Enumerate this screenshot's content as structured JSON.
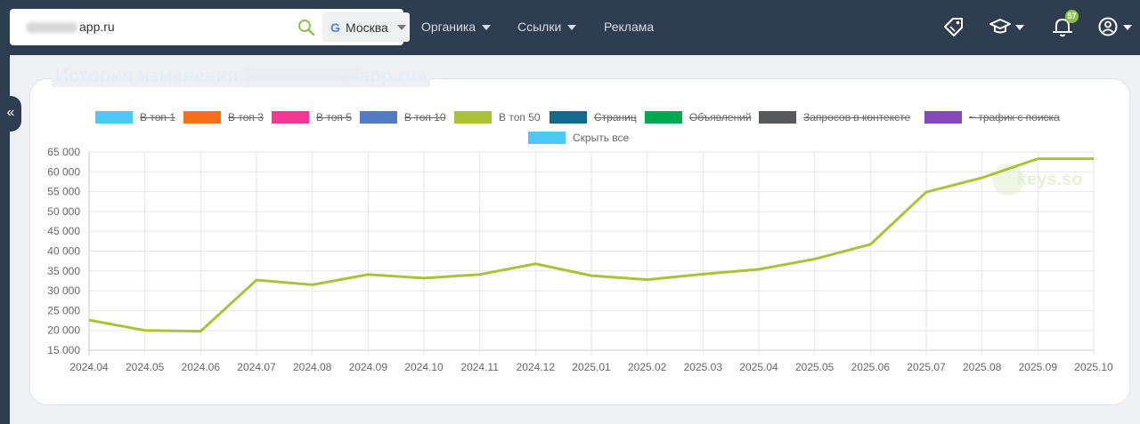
{
  "search": {
    "domain_suffix": "app.ru"
  },
  "region": {
    "label": "Москва",
    "engine_icon": "google-g-icon"
  },
  "nav": [
    {
      "label": "Органика",
      "has_dropdown": true
    },
    {
      "label": "Ссылки",
      "has_dropdown": true
    },
    {
      "label": "Реклама",
      "has_dropdown": false
    }
  ],
  "toolbar": {
    "notifications_count": "57"
  },
  "sidebar": {
    "collapse_glyph": "«"
  },
  "panel": {
    "title_prefix": "История изменения",
    "title_suffix": "app.ru»"
  },
  "legend": {
    "items": [
      {
        "label": "В топ 1",
        "color": "#4dc9f6",
        "hidden": true
      },
      {
        "label": "В топ 3",
        "color": "#f67019",
        "hidden": true
      },
      {
        "label": "В топ 5",
        "color": "#f53794",
        "hidden": true
      },
      {
        "label": "В топ 10",
        "color": "#537bc4",
        "hidden": true
      },
      {
        "label": "В топ 50",
        "color": "#acc236",
        "hidden": false
      },
      {
        "label": "Страниц",
        "color": "#166a8f",
        "hidden": true
      },
      {
        "label": "Объявлений",
        "color": "#00a950",
        "hidden": true
      },
      {
        "label": "Запросов в контексте",
        "color": "#58595b",
        "hidden": true
      },
      {
        "label": "~ трафик с поиска",
        "color": "#8549ba",
        "hidden": true
      }
    ],
    "hide_all": {
      "label": "Скрыть все",
      "color": "#4dc9f6"
    }
  },
  "watermark": {
    "text": "keys.so"
  },
  "chart_data": {
    "type": "line",
    "categories": [
      "2024.04",
      "2024.05",
      "2024.06",
      "2024.07",
      "2024.08",
      "2024.09",
      "2024.10",
      "2024.11",
      "2024.12",
      "2025.01",
      "2025.02",
      "2025.03",
      "2025.04",
      "2025.05",
      "2025.06",
      "2025.07",
      "2025.08",
      "2025.09",
      "2025.10"
    ],
    "series": [
      {
        "name": "В топ 50",
        "color": "#acc236",
        "values": [
          22600,
          20000,
          19800,
          32700,
          31500,
          34100,
          33200,
          34100,
          36800,
          33800,
          32800,
          34200,
          35400,
          38000,
          41700,
          54900,
          58500,
          63300,
          63300
        ]
      }
    ],
    "ylim": [
      15000,
      65000
    ],
    "yticks": [
      "15 000",
      "20 000",
      "25 000",
      "30 000",
      "35 000",
      "40 000",
      "45 000",
      "50 000",
      "55 000",
      "60 000",
      "65 000"
    ],
    "grid": true,
    "legend_position": "top"
  }
}
